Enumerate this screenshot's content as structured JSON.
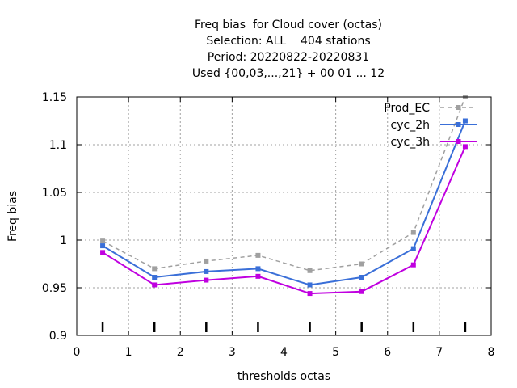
{
  "chart_data": {
    "type": "line",
    "title_lines": [
      "Freq bias  for Cloud cover (octas)",
      "Selection: ALL    404 stations",
      "Period: 20220822-20220831",
      "Used {00,03,...,21} + 00 01 ... 12"
    ],
    "xlabel": "thresholds octas",
    "ylabel": "Freq bias",
    "xlim": [
      0,
      8
    ],
    "ylim": [
      0.9,
      1.15
    ],
    "x_ticks": [
      "0",
      "1",
      "2",
      "3",
      "4",
      "5",
      "6",
      "7",
      "8"
    ],
    "y_ticks": [
      "0.9",
      "0.95",
      "1",
      "1.05",
      "1.1",
      "1.15"
    ],
    "grid": true,
    "legend_position": "top-right",
    "x": [
      0.5,
      1.5,
      2.5,
      3.5,
      4.5,
      5.5,
      6.5,
      7.5
    ],
    "series": [
      {
        "name": "Prod_EC",
        "color": "#a0a0a0",
        "dashed": true,
        "values": [
          0.999,
          0.97,
          0.978,
          0.984,
          0.968,
          0.975,
          1.008,
          1.15
        ]
      },
      {
        "name": "cyc_2h",
        "color": "#3a6fd8",
        "dashed": false,
        "values": [
          0.994,
          0.961,
          0.967,
          0.97,
          0.953,
          0.961,
          0.991,
          1.125
        ]
      },
      {
        "name": "cyc_3h",
        "color": "#c000e0",
        "dashed": false,
        "values": [
          0.987,
          0.953,
          0.958,
          0.962,
          0.944,
          0.946,
          0.974,
          1.098
        ]
      }
    ]
  }
}
